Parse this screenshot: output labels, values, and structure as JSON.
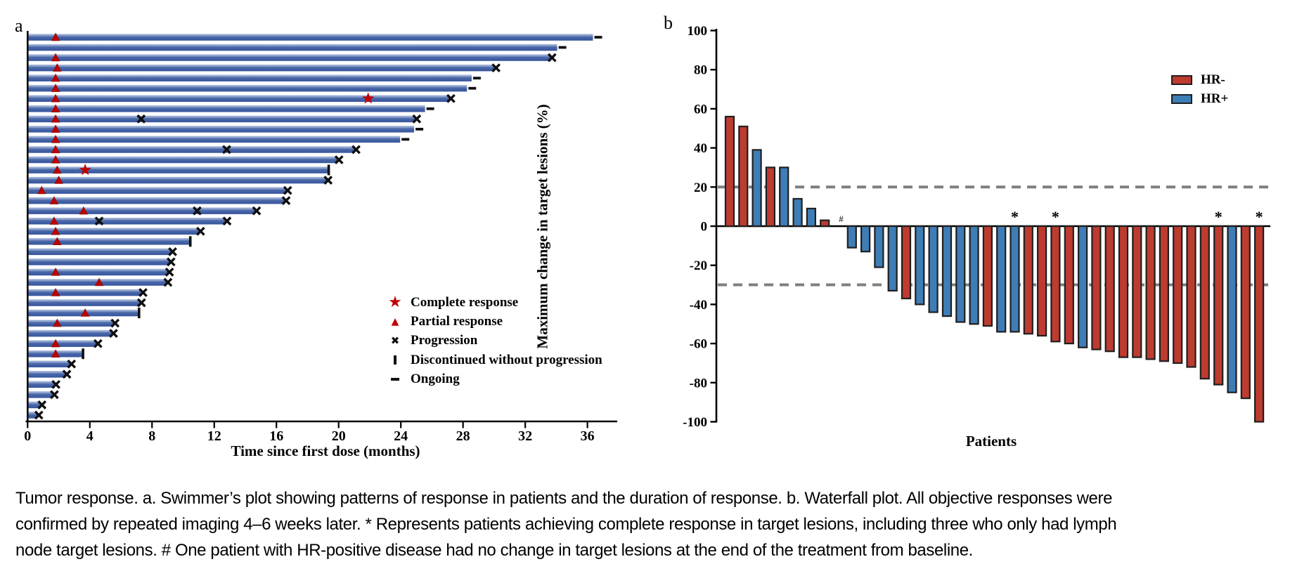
{
  "caption": {
    "line1": "Tumor response. a. Swimmer’s plot showing patterns of response in patients and the duration of response. b. Waterfall plot. All objective responses were",
    "line2": "confirmed by repeated imaging 4–6 weeks later. * Represents patients achieving complete response in target lesions, including three who only had lymph",
    "line3": "node target lesions. # One patient with HR-positive disease had no change in target lesions at the end of the treatment from baseline."
  },
  "colors": {
    "swim_bar_dark": "#36549D",
    "swim_bar_mid": "#4A68A8",
    "swim_bar_light": "#AEBEDD",
    "marker_red": "#C00000",
    "hr_neg": "#BE3B2F",
    "hr_pos": "#3E7DB6",
    "bar_stroke": "#1f1f1f",
    "dash_gray": "#7f7f7f",
    "axis_black": "#000000"
  },
  "chart_data": [
    {
      "type": "bar",
      "name": "swimmer-plot",
      "panel_label": "a",
      "orientation": "horizontal",
      "xlabel": "Time since first dose (months)",
      "xticks": [
        0,
        4,
        8,
        12,
        16,
        20,
        24,
        28,
        32,
        36
      ],
      "xlim": [
        0,
        38
      ],
      "grid": false,
      "legend_position": "lower right",
      "legend": [
        {
          "marker": "star",
          "label": "Complete response"
        },
        {
          "marker": "triangle",
          "label": "Partial response"
        },
        {
          "marker": "x",
          "label": "Progression"
        },
        {
          "marker": "bar",
          "label": "Discontinued without progression"
        },
        {
          "marker": "dash",
          "label": "Ongoing"
        }
      ],
      "bars": [
        {
          "duration": 36.3,
          "partial_at": 1.8,
          "end": "ongoing"
        },
        {
          "duration": 34.0,
          "end": "ongoing"
        },
        {
          "duration": 33.6,
          "partial_at": 1.8,
          "end": "x"
        },
        {
          "duration": 30.0,
          "partial_at": 1.9,
          "end": "x"
        },
        {
          "duration": 28.5,
          "partial_at": 1.8,
          "end": "ongoing"
        },
        {
          "duration": 28.2,
          "partial_at": 1.8,
          "end": "ongoing"
        },
        {
          "duration": 27.1,
          "partial_at": 1.8,
          "complete_at": 21.9,
          "end": "x"
        },
        {
          "duration": 25.5,
          "partial_at": 1.8,
          "end": "ongoing"
        },
        {
          "duration": 24.9,
          "partial_at": 1.8,
          "progression_at": 7.3,
          "end": "x"
        },
        {
          "duration": 24.8,
          "partial_at": 1.8,
          "end": "ongoing"
        },
        {
          "duration": 23.9,
          "partial_at": 1.8,
          "end": "ongoing"
        },
        {
          "duration": 21.0,
          "partial_at": 1.8,
          "progression_at": 12.8,
          "end": "x"
        },
        {
          "duration": 19.9,
          "partial_at": 1.8,
          "end": "x"
        },
        {
          "duration": 19.3,
          "partial_at": 1.9,
          "complete_at": 3.7,
          "end": "discontinued"
        },
        {
          "duration": 19.2,
          "partial_at": 2.0,
          "end": "x"
        },
        {
          "duration": 16.6,
          "partial_at": 0.9,
          "end": "x"
        },
        {
          "duration": 16.5,
          "partial_at": 1.7,
          "end": "x"
        },
        {
          "duration": 14.6,
          "partial_at": 3.6,
          "progression_at": 10.9,
          "end": "x"
        },
        {
          "duration": 12.7,
          "partial_at": 1.7,
          "progression_at": 4.6,
          "end": "x"
        },
        {
          "duration": 11.0,
          "partial_at": 1.8,
          "end": "x"
        },
        {
          "duration": 10.4,
          "partial_at": 1.9,
          "end": "discontinued"
        },
        {
          "duration": 9.2,
          "end": "x"
        },
        {
          "duration": 9.1,
          "end": "x"
        },
        {
          "duration": 9.0,
          "partial_at": 1.8,
          "end": "x"
        },
        {
          "duration": 8.9,
          "partial_at": 4.6,
          "end": "x"
        },
        {
          "duration": 7.3,
          "partial_at": 1.8,
          "end": "x"
        },
        {
          "duration": 7.2,
          "end": "x"
        },
        {
          "duration": 7.1,
          "partial_at": 3.7,
          "end": "discontinued"
        },
        {
          "duration": 5.5,
          "partial_at": 1.9,
          "end": "x"
        },
        {
          "duration": 5.4,
          "end": "x"
        },
        {
          "duration": 4.4,
          "partial_at": 1.8,
          "end": "x"
        },
        {
          "duration": 3.5,
          "partial_at": 1.8,
          "end": "discontinued"
        },
        {
          "duration": 2.7,
          "end": "x"
        },
        {
          "duration": 2.4,
          "end": "x"
        },
        {
          "duration": 1.7,
          "end": "x"
        },
        {
          "duration": 1.6,
          "end": "x"
        },
        {
          "duration": 0.8,
          "end": "x"
        },
        {
          "duration": 0.6,
          "end": "x"
        }
      ]
    },
    {
      "type": "bar",
      "name": "waterfall-plot",
      "panel_label": "b",
      "ylabel": "Maximum change in target lesions (%)",
      "xlabel": "Patients",
      "yticks": [
        100,
        80,
        60,
        40,
        20,
        0,
        -20,
        -40,
        -60,
        -80,
        -100
      ],
      "ylim": [
        -100,
        100
      ],
      "reference_lines": [
        20,
        -30
      ],
      "grid": false,
      "legend_position": "upper right",
      "legend": [
        {
          "label": "HR-",
          "group": "HR-"
        },
        {
          "label": "HR+",
          "group": "HR+"
        }
      ],
      "bars": [
        {
          "value": 56,
          "group": "HR-"
        },
        {
          "value": 51,
          "group": "HR-"
        },
        {
          "value": 39,
          "group": "HR+"
        },
        {
          "value": 30,
          "group": "HR-"
        },
        {
          "value": 30,
          "group": "HR+"
        },
        {
          "value": 14,
          "group": "HR+"
        },
        {
          "value": 9,
          "group": "HR+"
        },
        {
          "value": 3,
          "group": "HR-"
        },
        {
          "value": 0,
          "group": "HR+",
          "flag": "#"
        },
        {
          "value": -11,
          "group": "HR+"
        },
        {
          "value": -13,
          "group": "HR+"
        },
        {
          "value": -21,
          "group": "HR+"
        },
        {
          "value": -33,
          "group": "HR+"
        },
        {
          "value": -37,
          "group": "HR-"
        },
        {
          "value": -40,
          "group": "HR+"
        },
        {
          "value": -44,
          "group": "HR+"
        },
        {
          "value": -46,
          "group": "HR+"
        },
        {
          "value": -49,
          "group": "HR+"
        },
        {
          "value": -50,
          "group": "HR+"
        },
        {
          "value": -51,
          "group": "HR-"
        },
        {
          "value": -54,
          "group": "HR+"
        },
        {
          "value": -54,
          "group": "HR+",
          "flag": "*"
        },
        {
          "value": -55,
          "group": "HR-"
        },
        {
          "value": -56,
          "group": "HR-"
        },
        {
          "value": -59,
          "group": "HR-",
          "flag": "*"
        },
        {
          "value": -60,
          "group": "HR-"
        },
        {
          "value": -62,
          "group": "HR+"
        },
        {
          "value": -63,
          "group": "HR-"
        },
        {
          "value": -64,
          "group": "HR-"
        },
        {
          "value": -67,
          "group": "HR-"
        },
        {
          "value": -67,
          "group": "HR-"
        },
        {
          "value": -68,
          "group": "HR-"
        },
        {
          "value": -69,
          "group": "HR-"
        },
        {
          "value": -70,
          "group": "HR-"
        },
        {
          "value": -72,
          "group": "HR-"
        },
        {
          "value": -78,
          "group": "HR-"
        },
        {
          "value": -81,
          "group": "HR-",
          "flag": "*"
        },
        {
          "value": -85,
          "group": "HR+"
        },
        {
          "value": -88,
          "group": "HR-"
        },
        {
          "value": -100,
          "group": "HR-",
          "flag": "*"
        }
      ]
    }
  ]
}
